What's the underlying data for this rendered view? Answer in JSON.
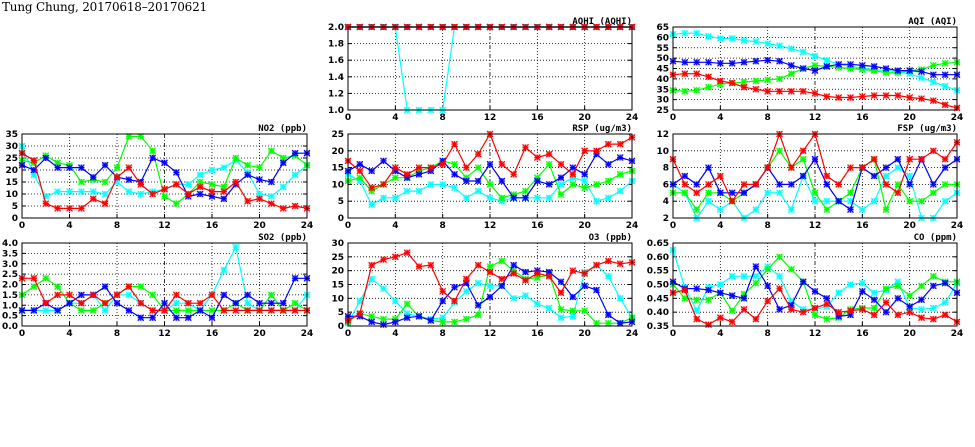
{
  "title": "Tung Chung, 20170618–20170621",
  "chart_data": [
    {
      "type": "line",
      "title": "AQHI (AQHI)",
      "xlim": [
        0,
        24
      ],
      "xticks": [
        0,
        4,
        8,
        12,
        16,
        20,
        24
      ],
      "ylim": [
        1.0,
        2.0
      ],
      "yticks": [
        "1.0",
        "1.2",
        "1.4",
        "1.6",
        "1.8",
        "2.0"
      ],
      "grid": true,
      "series": [
        {
          "color": "#00ffff",
          "values": [
            2,
            2,
            2,
            2,
            2,
            1,
            1,
            1,
            1,
            2,
            2,
            2,
            2,
            2,
            2,
            2,
            2,
            2,
            2,
            2,
            2,
            2,
            2,
            2,
            2
          ]
        },
        {
          "color": "#00ff00",
          "values": [
            2,
            2,
            2,
            2,
            2,
            2,
            2,
            2,
            2,
            2,
            2,
            2,
            2,
            2,
            2,
            2,
            2,
            2,
            2,
            2,
            2,
            2,
            2,
            2,
            2
          ]
        },
        {
          "color": "#0000ff",
          "values": [
            2,
            2,
            2,
            2,
            2,
            2,
            2,
            2,
            2,
            2,
            2,
            2,
            2,
            2,
            2,
            2,
            2,
            2,
            2,
            2,
            2,
            2,
            2,
            2,
            2
          ]
        },
        {
          "color": "#ff0000",
          "values": [
            2,
            2,
            2,
            2,
            2,
            2,
            2,
            2,
            2,
            2,
            2,
            2,
            2,
            2,
            2,
            2,
            2,
            2,
            2,
            2,
            2,
            2,
            2,
            2,
            2
          ]
        }
      ]
    },
    {
      "type": "line",
      "title": "AQI (AQI)",
      "xlim": [
        0,
        24
      ],
      "xticks": [
        0,
        4,
        8,
        12,
        16,
        20,
        24
      ],
      "ylim": [
        25,
        65
      ],
      "yticks": [
        "25",
        "30",
        "35",
        "40",
        "45",
        "50",
        "55",
        "60",
        "65"
      ],
      "grid": true,
      "series": [
        {
          "color": "#00ffff",
          "values": [
            61.5,
            62,
            62,
            60.5,
            59.5,
            59.5,
            58.5,
            58,
            57,
            56,
            54.5,
            53,
            51,
            49,
            47,
            46,
            45,
            44.5,
            44,
            43.5,
            42.5,
            40.5,
            38.5,
            36.5,
            34.5
          ]
        },
        {
          "color": "#00ff00",
          "values": [
            34.5,
            34,
            34.5,
            36,
            37.5,
            38,
            38.5,
            39,
            39.5,
            40,
            42.5,
            45,
            46.5,
            46,
            45.5,
            45,
            44.5,
            44,
            43,
            43,
            44,
            44.5,
            46.5,
            47.5,
            48
          ]
        },
        {
          "color": "#0000ff",
          "values": [
            48.5,
            48,
            48,
            48,
            47.5,
            47.5,
            48,
            48.5,
            49,
            48.5,
            46.5,
            45,
            44,
            46,
            47,
            47,
            46.5,
            46,
            45,
            44,
            44,
            43.5,
            42,
            42,
            42
          ]
        },
        {
          "color": "#ff0000",
          "values": [
            42,
            42.5,
            42.5,
            41,
            39,
            38,
            36,
            35,
            34,
            34,
            34,
            34,
            33,
            31.5,
            31,
            31,
            31.5,
            32,
            32,
            32,
            31,
            30.5,
            29.5,
            27.5,
            26
          ]
        }
      ]
    },
    {
      "type": "line",
      "title": "NO2 (ppb)",
      "xlim": [
        0,
        24
      ],
      "xticks": [
        0,
        4,
        8,
        12,
        16,
        20,
        24
      ],
      "ylim": [
        0,
        35
      ],
      "yticks": [
        "0",
        "5",
        "10",
        "15",
        "20",
        "25",
        "30",
        "35"
      ],
      "grid": true,
      "series": [
        {
          "color": "#00ffff",
          "values": [
            30,
            18,
            9,
            11,
            11,
            11,
            11,
            10,
            15,
            11,
            10,
            11,
            12,
            14,
            14,
            18,
            20,
            21,
            24,
            19,
            10,
            9,
            13,
            18,
            22
          ]
        },
        {
          "color": "#00ff00",
          "values": [
            24,
            23,
            26,
            23,
            22,
            15,
            16,
            15,
            21,
            34,
            34,
            28,
            9,
            6,
            10,
            15,
            14,
            13,
            25,
            22,
            21,
            28,
            25,
            26,
            22
          ]
        },
        {
          "color": "#0000ff",
          "values": [
            22,
            20,
            25,
            21,
            21,
            21,
            17,
            22,
            17,
            16,
            15,
            25,
            23,
            19,
            9,
            10,
            9,
            8,
            14,
            18,
            16,
            15,
            23,
            27,
            27
          ]
        },
        {
          "color": "#ff0000",
          "values": [
            27,
            24,
            6,
            4,
            4,
            4,
            8,
            6,
            17,
            21,
            14,
            10,
            12,
            14,
            10,
            13,
            11,
            11,
            15,
            7,
            8,
            6,
            4,
            5,
            4
          ]
        }
      ]
    },
    {
      "type": "line",
      "title": "RSP (ug/m3)",
      "xlim": [
        0,
        24
      ],
      "xticks": [
        0,
        4,
        8,
        12,
        16,
        20,
        24
      ],
      "ylim": [
        0,
        25
      ],
      "yticks": [
        "0",
        "5",
        "10",
        "15",
        "20",
        "25"
      ],
      "grid": true,
      "series": [
        {
          "color": "#00ffff",
          "values": [
            13,
            11,
            4,
            6,
            6,
            8,
            8,
            10,
            10,
            9,
            6,
            8,
            6,
            5,
            6,
            6,
            6,
            6,
            10,
            12,
            11,
            5,
            6,
            8,
            11
          ]
        },
        {
          "color": "#00ff00",
          "values": [
            11,
            12,
            8,
            10,
            12,
            12,
            14,
            15,
            17,
            16,
            12,
            15,
            10,
            6,
            7,
            8,
            12,
            16,
            7,
            10,
            9,
            10,
            11,
            13,
            14
          ]
        },
        {
          "color": "#0000ff",
          "values": [
            14,
            16,
            14,
            17,
            14,
            12,
            13,
            14,
            17,
            13,
            11,
            11,
            16,
            11,
            6,
            6,
            11,
            10,
            12,
            15,
            13,
            19,
            16,
            18,
            17
          ]
        },
        {
          "color": "#ff0000",
          "values": [
            17,
            14,
            9,
            10,
            15,
            13,
            15,
            15,
            16,
            22,
            15,
            19,
            25,
            16,
            13,
            21,
            18,
            19,
            16,
            13,
            20,
            20,
            22,
            22,
            24
          ]
        }
      ]
    },
    {
      "type": "line",
      "title": "FSP (ug/m3)",
      "xlim": [
        0,
        24
      ],
      "xticks": [
        0,
        4,
        8,
        12,
        16,
        20,
        24
      ],
      "ylim": [
        2,
        12
      ],
      "yticks": [
        "2",
        "4",
        "6",
        "8",
        "10",
        "12"
      ],
      "grid": true,
      "series": [
        {
          "color": "#00ffff",
          "values": [
            6,
            5,
            2,
            4,
            3,
            4,
            2,
            3,
            5,
            5,
            3,
            7,
            4,
            4,
            4,
            4,
            3,
            4,
            7,
            8,
            7,
            2,
            2,
            4,
            5
          ]
        },
        {
          "color": "#00ff00",
          "values": [
            5,
            5,
            3,
            5,
            5,
            4,
            5,
            6,
            8,
            10,
            8,
            9,
            5,
            3,
            4,
            5,
            8,
            9,
            3,
            6,
            4,
            4,
            5,
            6,
            6
          ]
        },
        {
          "color": "#0000ff",
          "values": [
            6,
            7,
            6,
            8,
            5,
            5,
            5,
            6,
            8,
            6,
            6,
            7,
            9,
            6,
            4,
            3,
            8,
            7,
            8,
            9,
            6,
            9,
            6,
            8,
            9
          ]
        },
        {
          "color": "#ff0000",
          "values": [
            9,
            6,
            5,
            6,
            7,
            4,
            6,
            6,
            8,
            12,
            8,
            10,
            12,
            7,
            6,
            8,
            8,
            9,
            6,
            5,
            9,
            9,
            10,
            9,
            11
          ]
        }
      ]
    },
    {
      "type": "line",
      "title": "SO2 (ppb)",
      "xlim": [
        0,
        24
      ],
      "xticks": [
        0,
        4,
        8,
        12,
        16,
        20,
        24
      ],
      "ylim": [
        0,
        4
      ],
      "yticks": [
        "0.0",
        "0.5",
        "1.0",
        "1.5",
        "2.0",
        "2.5",
        "3.0",
        "3.5",
        "4.0"
      ],
      "grid": true,
      "series": [
        {
          "color": "#00ffff",
          "values": [
            0.75,
            0.75,
            0.75,
            0.75,
            1.1,
            1.1,
            1.5,
            0.75,
            1.5,
            1.5,
            1.1,
            0.75,
            0.75,
            1.1,
            1.1,
            0.75,
            1.5,
            2.7,
            3.8,
            1.1,
            0.75,
            0.75,
            0.75,
            0.75,
            1.5
          ]
        },
        {
          "color": "#00ff00",
          "values": [
            1.5,
            1.9,
            2.3,
            1.9,
            1.1,
            0.75,
            0.75,
            1.1,
            1.5,
            1.9,
            1.9,
            1.5,
            0.75,
            0.75,
            0.75,
            0.75,
            0.75,
            0.75,
            1.1,
            0.75,
            0.75,
            1.5,
            0.75,
            1.1,
            0.75
          ]
        },
        {
          "color": "#0000ff",
          "values": [
            0.75,
            0.75,
            1.1,
            0.75,
            1.1,
            1.5,
            1.5,
            1.9,
            1.1,
            0.75,
            0.4,
            0.4,
            1.1,
            0.4,
            0.4,
            0.75,
            0.4,
            1.5,
            1.1,
            1.5,
            1.1,
            1.1,
            1.1,
            2.3,
            2.3
          ]
        },
        {
          "color": "#ff0000",
          "values": [
            2.3,
            2.3,
            1.1,
            1.5,
            1.5,
            1.1,
            1.5,
            1.1,
            1.5,
            1.9,
            1.1,
            0.75,
            0.75,
            1.5,
            1.1,
            1.1,
            1.5,
            0.75,
            0.75,
            0.75,
            0.75,
            0.75,
            0.75,
            0.75,
            0.75
          ]
        }
      ]
    },
    {
      "type": "line",
      "title": "O3 (ppb)",
      "xlim": [
        0,
        24
      ],
      "xticks": [
        0,
        4,
        8,
        12,
        16,
        20,
        24
      ],
      "ylim": [
        0,
        30
      ],
      "yticks": [
        "0",
        "5",
        "10",
        "15",
        "20",
        "25",
        "30"
      ],
      "grid": true,
      "series": [
        {
          "color": "#00ffff",
          "values": [
            1,
            9,
            17,
            13.5,
            9,
            4.5,
            3.5,
            2.5,
            3,
            8.5,
            12.5,
            15.5,
            14.5,
            14.5,
            10,
            11,
            8,
            6.5,
            3,
            3.5,
            19.5,
            22,
            18,
            10,
            3
          ]
        },
        {
          "color": "#00ff00",
          "values": [
            1.5,
            4.5,
            3.5,
            2.5,
            2.5,
            8,
            3.5,
            2,
            1.5,
            1.5,
            2.5,
            4,
            21.5,
            23.5,
            20,
            17,
            17.5,
            18.5,
            6,
            5.5,
            5.5,
            1,
            1,
            1,
            3
          ]
        },
        {
          "color": "#0000ff",
          "values": [
            3.5,
            3.5,
            1.5,
            0.5,
            1.5,
            3,
            3.5,
            2,
            9,
            14,
            15.5,
            7.5,
            10.5,
            14.5,
            22,
            19.5,
            20,
            19.5,
            16,
            10.5,
            14.5,
            13,
            4,
            1,
            1.5
          ]
        },
        {
          "color": "#ff0000",
          "values": [
            2,
            4.5,
            22,
            24,
            25,
            26.5,
            21.5,
            22,
            12.5,
            9,
            17,
            22,
            19.5,
            17,
            19,
            16.5,
            19,
            18,
            12,
            20,
            19,
            22,
            23.5,
            22.5,
            23
          ]
        }
      ]
    },
    {
      "type": "line",
      "title": "CO (ppm)",
      "xlim": [
        0,
        24
      ],
      "xticks": [
        0,
        4,
        8,
        12,
        16,
        20,
        24
      ],
      "ylim": [
        0.35,
        0.65
      ],
      "yticks": [
        "0.35",
        "0.40",
        "0.45",
        "0.50",
        "0.55",
        "0.60",
        "0.65"
      ],
      "grid": true,
      "series": [
        {
          "color": "#00ffff",
          "values": [
            0.625,
            0.49,
            0.405,
            0.49,
            0.5,
            0.53,
            0.53,
            0.53,
            0.565,
            0.53,
            0.44,
            0.41,
            0.41,
            0.42,
            0.47,
            0.5,
            0.505,
            0.47,
            0.48,
            0.51,
            0.415,
            0.41,
            0.415,
            0.435,
            0.505
          ]
        },
        {
          "color": "#00ff00",
          "values": [
            0.5,
            0.45,
            0.445,
            0.445,
            0.47,
            0.405,
            0.465,
            0.505,
            0.555,
            0.6,
            0.555,
            0.51,
            0.39,
            0.375,
            0.38,
            0.41,
            0.415,
            0.415,
            0.485,
            0.495,
            0.46,
            0.495,
            0.53,
            0.51,
            0.51
          ]
        },
        {
          "color": "#0000ff",
          "values": [
            0.51,
            0.485,
            0.485,
            0.48,
            0.47,
            0.46,
            0.45,
            0.565,
            0.495,
            0.41,
            0.425,
            0.51,
            0.475,
            0.45,
            0.385,
            0.39,
            0.475,
            0.445,
            0.4,
            0.45,
            0.42,
            0.445,
            0.495,
            0.505,
            0.47
          ]
        },
        {
          "color": "#ff0000",
          "values": [
            0.47,
            0.48,
            0.375,
            0.355,
            0.38,
            0.365,
            0.41,
            0.375,
            0.44,
            0.485,
            0.41,
            0.4,
            0.415,
            0.43,
            0.4,
            0.405,
            0.41,
            0.39,
            0.435,
            0.39,
            0.4,
            0.38,
            0.375,
            0.39,
            0.365
          ]
        }
      ]
    }
  ]
}
